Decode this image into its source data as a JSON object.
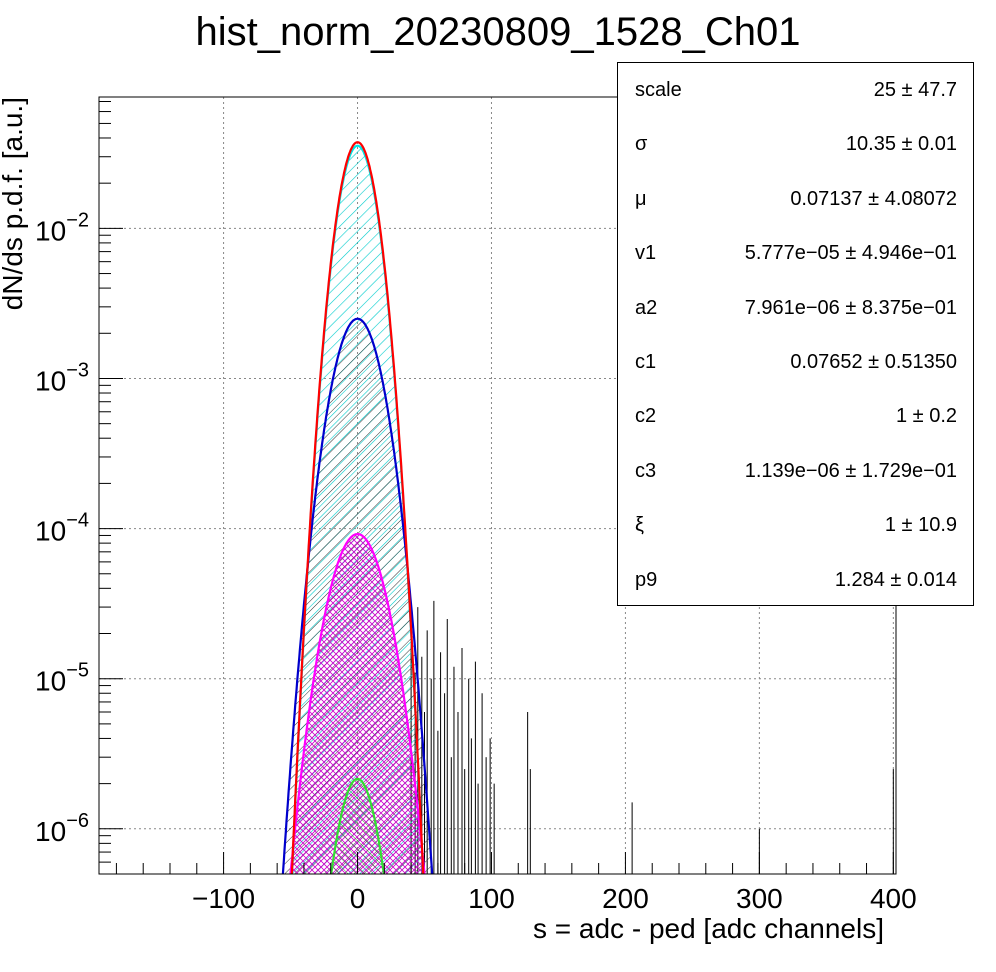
{
  "chart_data": {
    "type": "line",
    "title": "hist_norm_20230809_1528_Ch01",
    "xlabel": "s = adc - ped [adc channels]",
    "ylabel": "dN/ds p.d.f. [a.u.]",
    "xlim": [
      -193,
      402
    ],
    "ylim": [
      5e-07,
      0.075
    ],
    "yscale": "log",
    "grid": true,
    "x_ticks": [
      "−100",
      "0",
      "100",
      "200",
      "300",
      "400"
    ],
    "y_ticks": [
      {
        "base": "10",
        "exp": "−6"
      },
      {
        "base": "10",
        "exp": "−5"
      },
      {
        "base": "10",
        "exp": "−4"
      },
      {
        "base": "10",
        "exp": "−3"
      },
      {
        "base": "10",
        "exp": "−2"
      }
    ],
    "histogram_tail": [
      {
        "x": 40,
        "y": 2.4e-05
      },
      {
        "x": 43,
        "y": 1.1e-05
      },
      {
        "x": 45,
        "y": 3e-05
      },
      {
        "x": 48,
        "y": 1.4e-05
      },
      {
        "x": 50,
        "y": 6e-06
      },
      {
        "x": 52,
        "y": 2.1e-05
      },
      {
        "x": 55,
        "y": 1e-05
      },
      {
        "x": 57,
        "y": 3.3e-05
      },
      {
        "x": 60,
        "y": 4.5e-06
      },
      {
        "x": 62,
        "y": 1.5e-05
      },
      {
        "x": 65,
        "y": 8e-06
      },
      {
        "x": 67,
        "y": 2.5e-05
      },
      {
        "x": 70,
        "y": 3e-06
      },
      {
        "x": 72,
        "y": 1.2e-05
      },
      {
        "x": 75,
        "y": 6e-06
      },
      {
        "x": 78,
        "y": 1.6e-05
      },
      {
        "x": 80,
        "y": 2.5e-06
      },
      {
        "x": 83,
        "y": 1e-05
      },
      {
        "x": 85,
        "y": 4e-06
      },
      {
        "x": 88,
        "y": 1.3e-05
      },
      {
        "x": 90,
        "y": 2e-06
      },
      {
        "x": 93,
        "y": 8e-06
      },
      {
        "x": 96,
        "y": 3e-06
      },
      {
        "x": 99,
        "y": 4e-06
      },
      {
        "x": 102,
        "y": 2e-06
      },
      {
        "x": 127,
        "y": 6e-06
      },
      {
        "x": 129,
        "y": 2.5e-06
      },
      {
        "x": 205,
        "y": 1.5e-06
      },
      {
        "x": 300,
        "y": 1e-06
      },
      {
        "x": 400,
        "y": 2.5e-06
      }
    ],
    "series": [
      {
        "color": "#ff0000",
        "mu": 0,
        "sigma": 10.35,
        "amp": 0.0375,
        "fill": null
      },
      {
        "color": "#00e5e5",
        "mu": 0,
        "sigma": 10.35,
        "amp": 0.0355,
        "fill": "cyan-hatch"
      },
      {
        "color": "#0000cc",
        "mu": 0,
        "sigma": 13.5,
        "amp": 0.0025,
        "fill": "dark-hatch"
      },
      {
        "color": "#ff00ff",
        "mu": 0,
        "sigma": 15.5,
        "amp": 9.2e-05,
        "fill": "magenta-crosshatch"
      },
      {
        "color": "#33dd33",
        "mu": 0,
        "sigma": 11.5,
        "amp": 2.15e-06,
        "fill": "green-hatch"
      }
    ]
  },
  "stats": [
    {
      "name": "scale",
      "value": "25 ± 47.7"
    },
    {
      "name": "σ",
      "value": "10.35 ± 0.01"
    },
    {
      "name": "μ",
      "value": "0.07137 ± 4.08072"
    },
    {
      "name": "v1",
      "value": "5.777e−05 ± 4.946e−01"
    },
    {
      "name": "a2",
      "value": "7.961e−06 ± 8.375e−01"
    },
    {
      "name": "c1",
      "value": "0.07652 ± 0.51350"
    },
    {
      "name": "c2",
      "value": "1 ± 0.2"
    },
    {
      "name": "c3",
      "value": "1.139e−06 ± 1.729e−01"
    },
    {
      "name": "ξ",
      "value": "1 ± 10.9"
    },
    {
      "name": "p9",
      "value": "1.284 ± 0.014"
    }
  ]
}
